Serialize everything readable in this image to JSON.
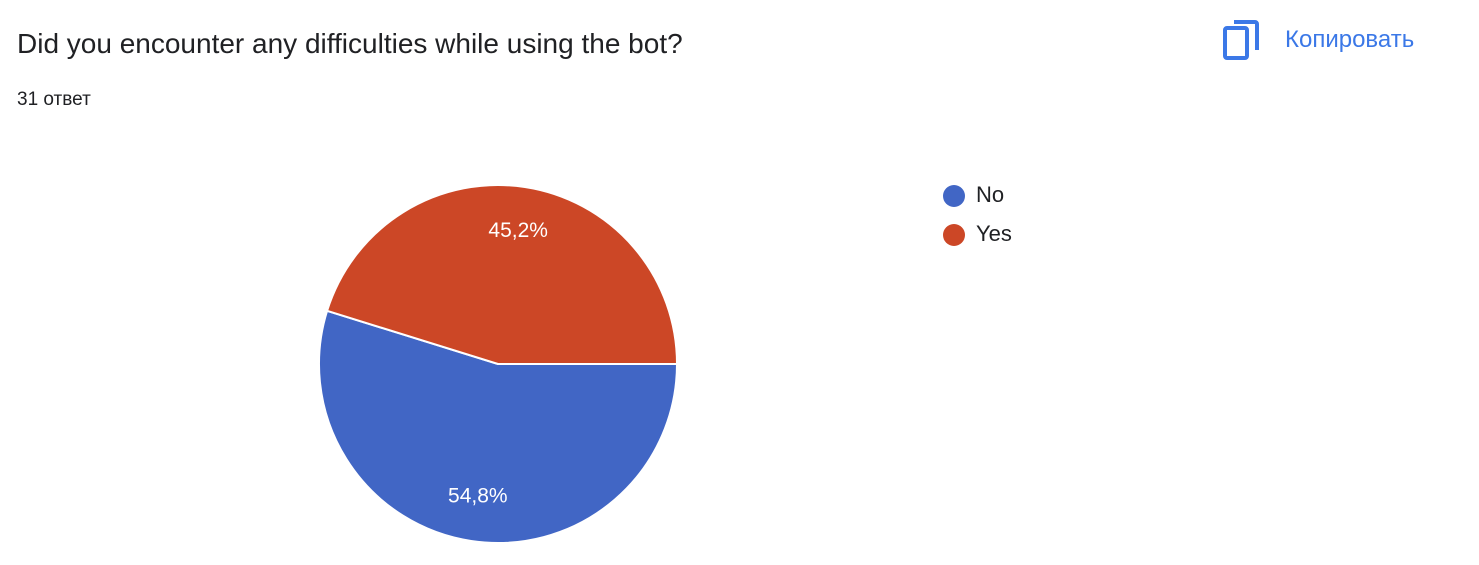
{
  "question": {
    "title": "Did you encounter any difficulties while using the bot?",
    "count_label": "31 ответ"
  },
  "toolbar": {
    "copy_label": "Копировать",
    "copy_icon": "copy-icon",
    "accent_color": "#3b78e7"
  },
  "chart_data": {
    "type": "pie",
    "title": "Did you encounter any difficulties while using the bot?",
    "total_responses": 31,
    "slices": [
      {
        "label": "No",
        "percent": 54.8,
        "display": "54,8%",
        "color": "#4166c5"
      },
      {
        "label": "Yes",
        "percent": 45.2,
        "display": "45,2%",
        "color": "#cc4726"
      }
    ],
    "legend_position": "right",
    "start_direction": "right, clockwise"
  }
}
